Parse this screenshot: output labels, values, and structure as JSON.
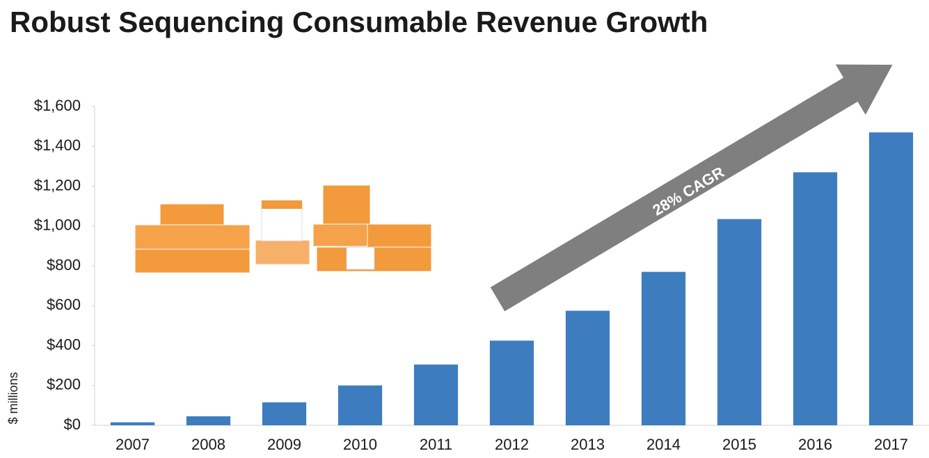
{
  "chart_data": {
    "type": "bar",
    "title": "Robust Sequencing Consumable Revenue Growth",
    "y_label": "$ millions",
    "annotation": "28% CAGR",
    "color": "#3d7dbf",
    "categories": [
      "2007",
      "2008",
      "2009",
      "2010",
      "2011",
      "2012",
      "2013",
      "2014",
      "2015",
      "2016",
      "2017"
    ],
    "values": [
      15,
      45,
      115,
      200,
      305,
      425,
      575,
      770,
      1035,
      1270,
      1470
    ],
    "ylim": [
      0,
      1600
    ],
    "yticks": [
      {
        "value": 0,
        "label": "$0"
      },
      {
        "value": 200,
        "label": "$200"
      },
      {
        "value": 400,
        "label": "$400"
      },
      {
        "value": 600,
        "label": "$600"
      },
      {
        "value": 800,
        "label": "$800"
      },
      {
        "value": 1000,
        "label": "$1,000"
      },
      {
        "value": 1200,
        "label": "$1,200"
      },
      {
        "value": 1400,
        "label": "$1,400"
      },
      {
        "value": 1600,
        "label": "$1,600"
      }
    ]
  }
}
